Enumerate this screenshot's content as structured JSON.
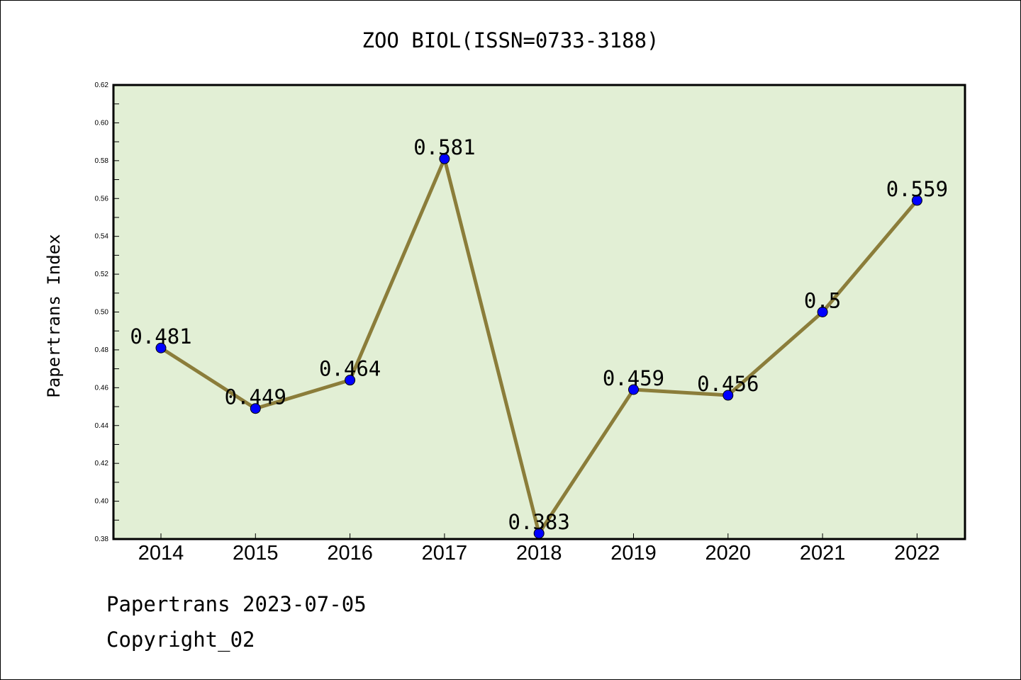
{
  "chart_data": {
    "type": "line",
    "title": "ZOO BIOL(ISSN=0733-3188)",
    "ylabel": "Papertrans Index",
    "xlabel": "",
    "categories": [
      "2014",
      "2015",
      "2016",
      "2017",
      "2018",
      "2019",
      "2020",
      "2021",
      "2022"
    ],
    "series": [
      {
        "values": [
          0.481,
          0.449,
          0.464,
          0.581,
          0.383,
          0.459,
          0.456,
          0.5,
          0.559
        ],
        "labels": [
          "0.481",
          "0.449",
          "0.464",
          "0.581",
          "0.383",
          "0.459",
          "0.456",
          "0.5",
          "0.559"
        ]
      }
    ],
    "ylim": [
      0.38,
      0.62
    ],
    "yticks": [
      "0.38",
      "0.40",
      "0.42",
      "0.44",
      "0.46",
      "0.48",
      "0.50",
      "0.52",
      "0.54",
      "0.56",
      "0.58",
      "0.60",
      "0.62"
    ],
    "grid": false,
    "colors": {
      "plot_background": "#e2efd5",
      "line": "#8b7d3a",
      "marker": "#0000ff"
    }
  },
  "footer": {
    "line1": "Papertrans 2023-07-05",
    "line2": "Copyright_02"
  }
}
